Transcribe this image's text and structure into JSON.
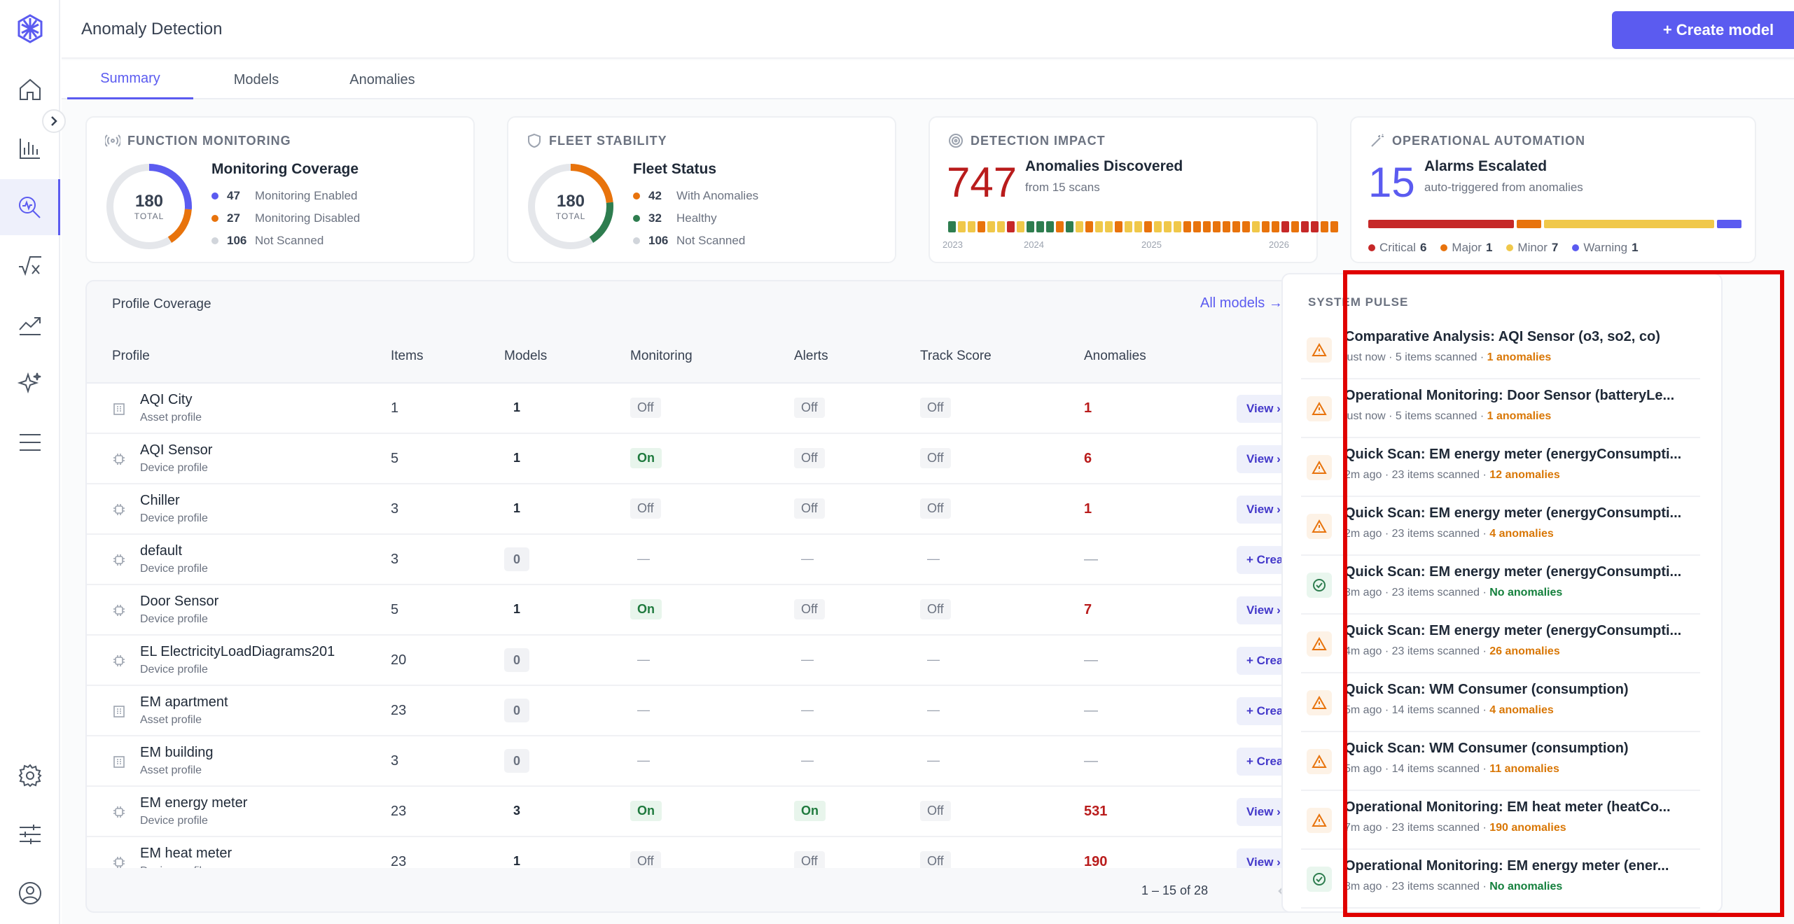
{
  "header": {
    "title": "Anomaly Detection",
    "create_label": "+ Create model"
  },
  "tabs": [
    {
      "label": "Summary"
    },
    {
      "label": "Models"
    },
    {
      "label": "Anomalies"
    }
  ],
  "cards": {
    "function_monitoring": {
      "heading": "FUNCTION MONITORING",
      "title": "Monitoring Coverage",
      "total": "180",
      "total_label": "TOTAL",
      "legend": [
        {
          "count": "47",
          "label": "Monitoring Enabled",
          "color": "#5b5bf0"
        },
        {
          "count": "27",
          "label": "Monitoring Disabled",
          "color": "#e8730c"
        },
        {
          "count": "106",
          "label": "Not Scanned",
          "color": "#d1d5db"
        }
      ]
    },
    "fleet_stability": {
      "heading": "FLEET STABILITY",
      "title": "Fleet Status",
      "total": "180",
      "total_label": "TOTAL",
      "legend": [
        {
          "count": "42",
          "label": "With Anomalies",
          "color": "#e8730c"
        },
        {
          "count": "32",
          "label": "Healthy",
          "color": "#2e7d4f"
        },
        {
          "count": "106",
          "label": "Not Scanned",
          "color": "#d1d5db"
        }
      ]
    },
    "detection_impact": {
      "heading": "DETECTION IMPACT",
      "value": "747",
      "title": "Anomalies Discovered",
      "subtitle": "from 15 scans",
      "years": [
        "2023",
        "2024",
        "2025",
        "2026"
      ],
      "timeline_colors": [
        "#2e7d4f",
        "#f0c84a",
        "#f0c84a",
        "#e8730c",
        "#f0c84a",
        "#f0c84a",
        "#c62828",
        "#f0c84a",
        "#2e7d4f",
        "#2e7d4f",
        "#2e7d4f",
        "#e8730c",
        "#2e7d4f",
        "#f0c84a",
        "#e8730c",
        "#f0c84a",
        "#f0c84a",
        "#e8730c",
        "#f0c84a",
        "#f0c84a",
        "#e8730c",
        "#f0c84a",
        "#f0c84a",
        "#f0c84a",
        "#e8730c",
        "#e8730c",
        "#e8730c",
        "#e8730c",
        "#e8730c",
        "#e8730c",
        "#e8730c",
        "#f0c84a",
        "#e8730c",
        "#e8730c",
        "#c62828",
        "#e8730c",
        "#c62828",
        "#c62828",
        "#e8730c",
        "#e8730c"
      ]
    },
    "operational_automation": {
      "heading": "OPERATIONAL AUTOMATION",
      "value": "15",
      "title": "Alarms Escalated",
      "subtitle": "auto-triggered from anomalies",
      "severity": [
        {
          "label": "Critical",
          "count": 6,
          "color": "#c62828"
        },
        {
          "label": "Major",
          "count": 1,
          "color": "#e8730c"
        },
        {
          "label": "Minor",
          "count": 7,
          "color": "#f0c84a"
        },
        {
          "label": "Warning",
          "count": 1,
          "color": "#5b5bf0"
        }
      ]
    }
  },
  "profile_coverage": {
    "title": "Profile Coverage",
    "all_models": "All models →",
    "columns": [
      "Profile",
      "Items",
      "Models",
      "Monitoring",
      "Alerts",
      "Track Score",
      "Anomalies"
    ],
    "rows": [
      {
        "name": "AQI City",
        "type": "Asset profile",
        "kind": "asset",
        "items": "1",
        "models": "1",
        "monitoring": "Off",
        "alerts": "Off",
        "track": "Off",
        "anomalies": "1",
        "action": "View ›"
      },
      {
        "name": "AQI Sensor",
        "type": "Device profile",
        "kind": "device",
        "items": "5",
        "models": "1",
        "monitoring": "On",
        "alerts": "Off",
        "track": "Off",
        "anomalies": "6",
        "action": "View ›"
      },
      {
        "name": "Chiller",
        "type": "Device profile",
        "kind": "device",
        "items": "3",
        "models": "1",
        "monitoring": "Off",
        "alerts": "Off",
        "track": "Off",
        "anomalies": "1",
        "action": "View ›"
      },
      {
        "name": "default",
        "type": "Device profile",
        "kind": "device",
        "items": "3",
        "models": "0",
        "monitoring": "—",
        "alerts": "—",
        "track": "—",
        "anomalies": "—",
        "action": "+ Create"
      },
      {
        "name": "Door Sensor",
        "type": "Device profile",
        "kind": "device",
        "items": "5",
        "models": "1",
        "monitoring": "On",
        "alerts": "Off",
        "track": "Off",
        "anomalies": "7",
        "action": "View ›"
      },
      {
        "name": "EL ElectricityLoadDiagrams201",
        "type": "Device profile",
        "kind": "device",
        "items": "20",
        "models": "0",
        "monitoring": "—",
        "alerts": "—",
        "track": "—",
        "anomalies": "—",
        "action": "+ Create"
      },
      {
        "name": "EM apartment",
        "type": "Asset profile",
        "kind": "asset",
        "items": "23",
        "models": "0",
        "monitoring": "—",
        "alerts": "—",
        "track": "—",
        "anomalies": "—",
        "action": "+ Create"
      },
      {
        "name": "EM building",
        "type": "Asset profile",
        "kind": "asset",
        "items": "3",
        "models": "0",
        "monitoring": "—",
        "alerts": "—",
        "track": "—",
        "anomalies": "—",
        "action": "+ Create"
      },
      {
        "name": "EM energy meter",
        "type": "Device profile",
        "kind": "device",
        "items": "23",
        "models": "3",
        "monitoring": "On",
        "alerts": "On",
        "track": "Off",
        "anomalies": "531",
        "action": "View ›"
      },
      {
        "name": "EM heat meter",
        "type": "Device profile",
        "kind": "device",
        "items": "23",
        "models": "1",
        "monitoring": "Off",
        "alerts": "Off",
        "track": "Off",
        "anomalies": "190",
        "action": "View ›"
      }
    ],
    "pagination": "1 – 15 of 28"
  },
  "system_pulse": {
    "heading": "SYSTEM PULSE",
    "items": [
      {
        "title": "Comparative Analysis: AQI Sensor (o3, so2, co)",
        "time": "just now",
        "scanned": "5 items scanned",
        "result": "1 anomalies",
        "status": "warn"
      },
      {
        "title": "Operational Monitoring: Door Sensor (batteryLe...",
        "time": "just now",
        "scanned": "5 items scanned",
        "result": "1 anomalies",
        "status": "warn"
      },
      {
        "title": "Quick Scan: EM energy meter (energyConsumpti...",
        "time": "2m ago",
        "scanned": "23 items scanned",
        "result": "12 anomalies",
        "status": "warn"
      },
      {
        "title": "Quick Scan: EM energy meter (energyConsumpti...",
        "time": "2m ago",
        "scanned": "23 items scanned",
        "result": "4 anomalies",
        "status": "warn"
      },
      {
        "title": "Quick Scan: EM energy meter (energyConsumpti...",
        "time": "3m ago",
        "scanned": "23 items scanned",
        "result": "No anomalies",
        "status": "ok"
      },
      {
        "title": "Quick Scan: EM energy meter (energyConsumpti...",
        "time": "4m ago",
        "scanned": "23 items scanned",
        "result": "26 anomalies",
        "status": "warn"
      },
      {
        "title": "Quick Scan: WM Consumer (consumption)",
        "time": "5m ago",
        "scanned": "14 items scanned",
        "result": "4 anomalies",
        "status": "warn"
      },
      {
        "title": "Quick Scan: WM Consumer (consumption)",
        "time": "5m ago",
        "scanned": "14 items scanned",
        "result": "11 anomalies",
        "status": "warn"
      },
      {
        "title": "Operational Monitoring: EM heat meter (heatCo...",
        "time": "7m ago",
        "scanned": "23 items scanned",
        "result": "190 anomalies",
        "status": "warn"
      },
      {
        "title": "Operational Monitoring: EM energy meter (ener...",
        "time": "8m ago",
        "scanned": "23 items scanned",
        "result": "No anomalies",
        "status": "ok"
      }
    ]
  },
  "colors": {
    "accent": "#5b5bf0",
    "critical": "#c62828",
    "major": "#e8730c",
    "minor": "#f0c84a",
    "healthy": "#2e7d4f"
  }
}
